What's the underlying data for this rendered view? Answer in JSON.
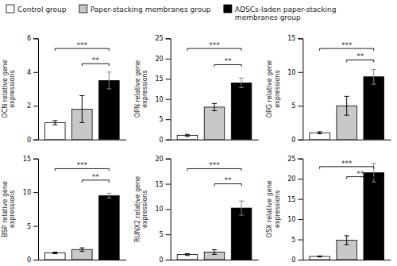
{
  "chart_data": [
    {
      "type": "bar",
      "ylabel": "OCN relative gene\nexpressions",
      "ylim": [
        0,
        6
      ],
      "yticks": [
        0,
        2,
        4,
        6
      ],
      "legend": "upper left",
      "series": [
        {
          "name": "Control group",
          "color": "white",
          "values": [
            1.0
          ],
          "error": [
            0.12
          ]
        },
        {
          "name": "Paper-stacking membranes group",
          "color": "#c8c8c8",
          "values": [
            1.8
          ],
          "error": [
            0.8
          ]
        },
        {
          "name": "ADSCs-laden paper-stacking\nmembranes group",
          "color": "black",
          "values": [
            3.5
          ],
          "error": [
            0.5
          ]
        }
      ],
      "annotations": [
        {
          "text": "***",
          "x1": 0,
          "x2": 2,
          "y": 5.4
        },
        {
          "text": "**",
          "x1": 1,
          "x2": 2,
          "y": 4.5
        }
      ]
    },
    {
      "type": "bar",
      "ylabel": "OPN relative gene\nexpressions",
      "ylim": [
        0,
        25
      ],
      "yticks": [
        0,
        5,
        10,
        15,
        20,
        25
      ],
      "series": [
        {
          "color": "white",
          "values": [
            1.0
          ],
          "error": [
            0.25
          ]
        },
        {
          "color": "#c8c8c8",
          "values": [
            8.0
          ],
          "error": [
            0.9
          ]
        },
        {
          "color": "black",
          "values": [
            14.0
          ],
          "error": [
            1.2
          ]
        }
      ],
      "annotations": [
        {
          "text": "***",
          "x1": 0,
          "x2": 2,
          "y": 22.5
        },
        {
          "text": "**",
          "x1": 1,
          "x2": 2,
          "y": 18.5
        }
      ]
    },
    {
      "type": "bar",
      "ylabel": "OPG relative gene\nexpressions",
      "ylim": [
        0,
        15
      ],
      "yticks": [
        0,
        5,
        10,
        15
      ],
      "series": [
        {
          "color": "white",
          "values": [
            1.0
          ],
          "error": [
            0.15
          ]
        },
        {
          "color": "#c8c8c8",
          "values": [
            5.0
          ],
          "error": [
            1.4
          ]
        },
        {
          "color": "black",
          "values": [
            9.3
          ],
          "error": [
            1.1
          ]
        }
      ],
      "annotations": [
        {
          "text": "***",
          "x1": 0,
          "x2": 2,
          "y": 13.5
        },
        {
          "text": "**",
          "x1": 1,
          "x2": 2,
          "y": 11.8
        }
      ]
    },
    {
      "type": "bar",
      "ylabel": "BSP relative gene\nexpressions",
      "ylim": [
        0,
        15
      ],
      "yticks": [
        0,
        5,
        10,
        15
      ],
      "series": [
        {
          "color": "white",
          "values": [
            1.0
          ],
          "error": [
            0.12
          ]
        },
        {
          "color": "#c8c8c8",
          "values": [
            1.5
          ],
          "error": [
            0.25
          ]
        },
        {
          "color": "black",
          "values": [
            9.5
          ],
          "error": [
            0.35
          ]
        }
      ],
      "annotations": [
        {
          "text": "***",
          "x1": 0,
          "x2": 2,
          "y": 13.5
        },
        {
          "text": "**",
          "x1": 1,
          "x2": 2,
          "y": 11.8
        }
      ]
    },
    {
      "type": "bar",
      "ylabel": "RUNX2 relative gene\nexpressions",
      "ylim": [
        0,
        20
      ],
      "yticks": [
        0,
        5,
        10,
        15,
        20
      ],
      "series": [
        {
          "color": "white",
          "values": [
            1.0
          ],
          "error": [
            0.18
          ]
        },
        {
          "color": "#c8c8c8",
          "values": [
            1.5
          ],
          "error": [
            0.45
          ]
        },
        {
          "color": "black",
          "values": [
            10.2
          ],
          "error": [
            1.4
          ]
        }
      ],
      "annotations": [
        {
          "text": "***",
          "x1": 0,
          "x2": 2,
          "y": 18.0
        },
        {
          "text": "**",
          "x1": 1,
          "x2": 2,
          "y": 15.0
        }
      ]
    },
    {
      "type": "bar",
      "ylabel": "OSX relative gene\nexpressions",
      "ylim": [
        0,
        25
      ],
      "yticks": [
        0,
        5,
        10,
        15,
        20,
        25
      ],
      "series": [
        {
          "color": "white",
          "values": [
            0.8
          ],
          "error": [
            0.12
          ]
        },
        {
          "color": "#c8c8c8",
          "values": [
            4.8
          ],
          "error": [
            1.1
          ]
        },
        {
          "color": "black",
          "values": [
            21.5
          ],
          "error": [
            2.3
          ]
        }
      ],
      "annotations": [
        {
          "text": "***",
          "x1": 0,
          "x2": 2,
          "y": 23.0
        },
        {
          "text": "**",
          "x1": 1,
          "x2": 2,
          "y": 20.5
        }
      ]
    }
  ]
}
